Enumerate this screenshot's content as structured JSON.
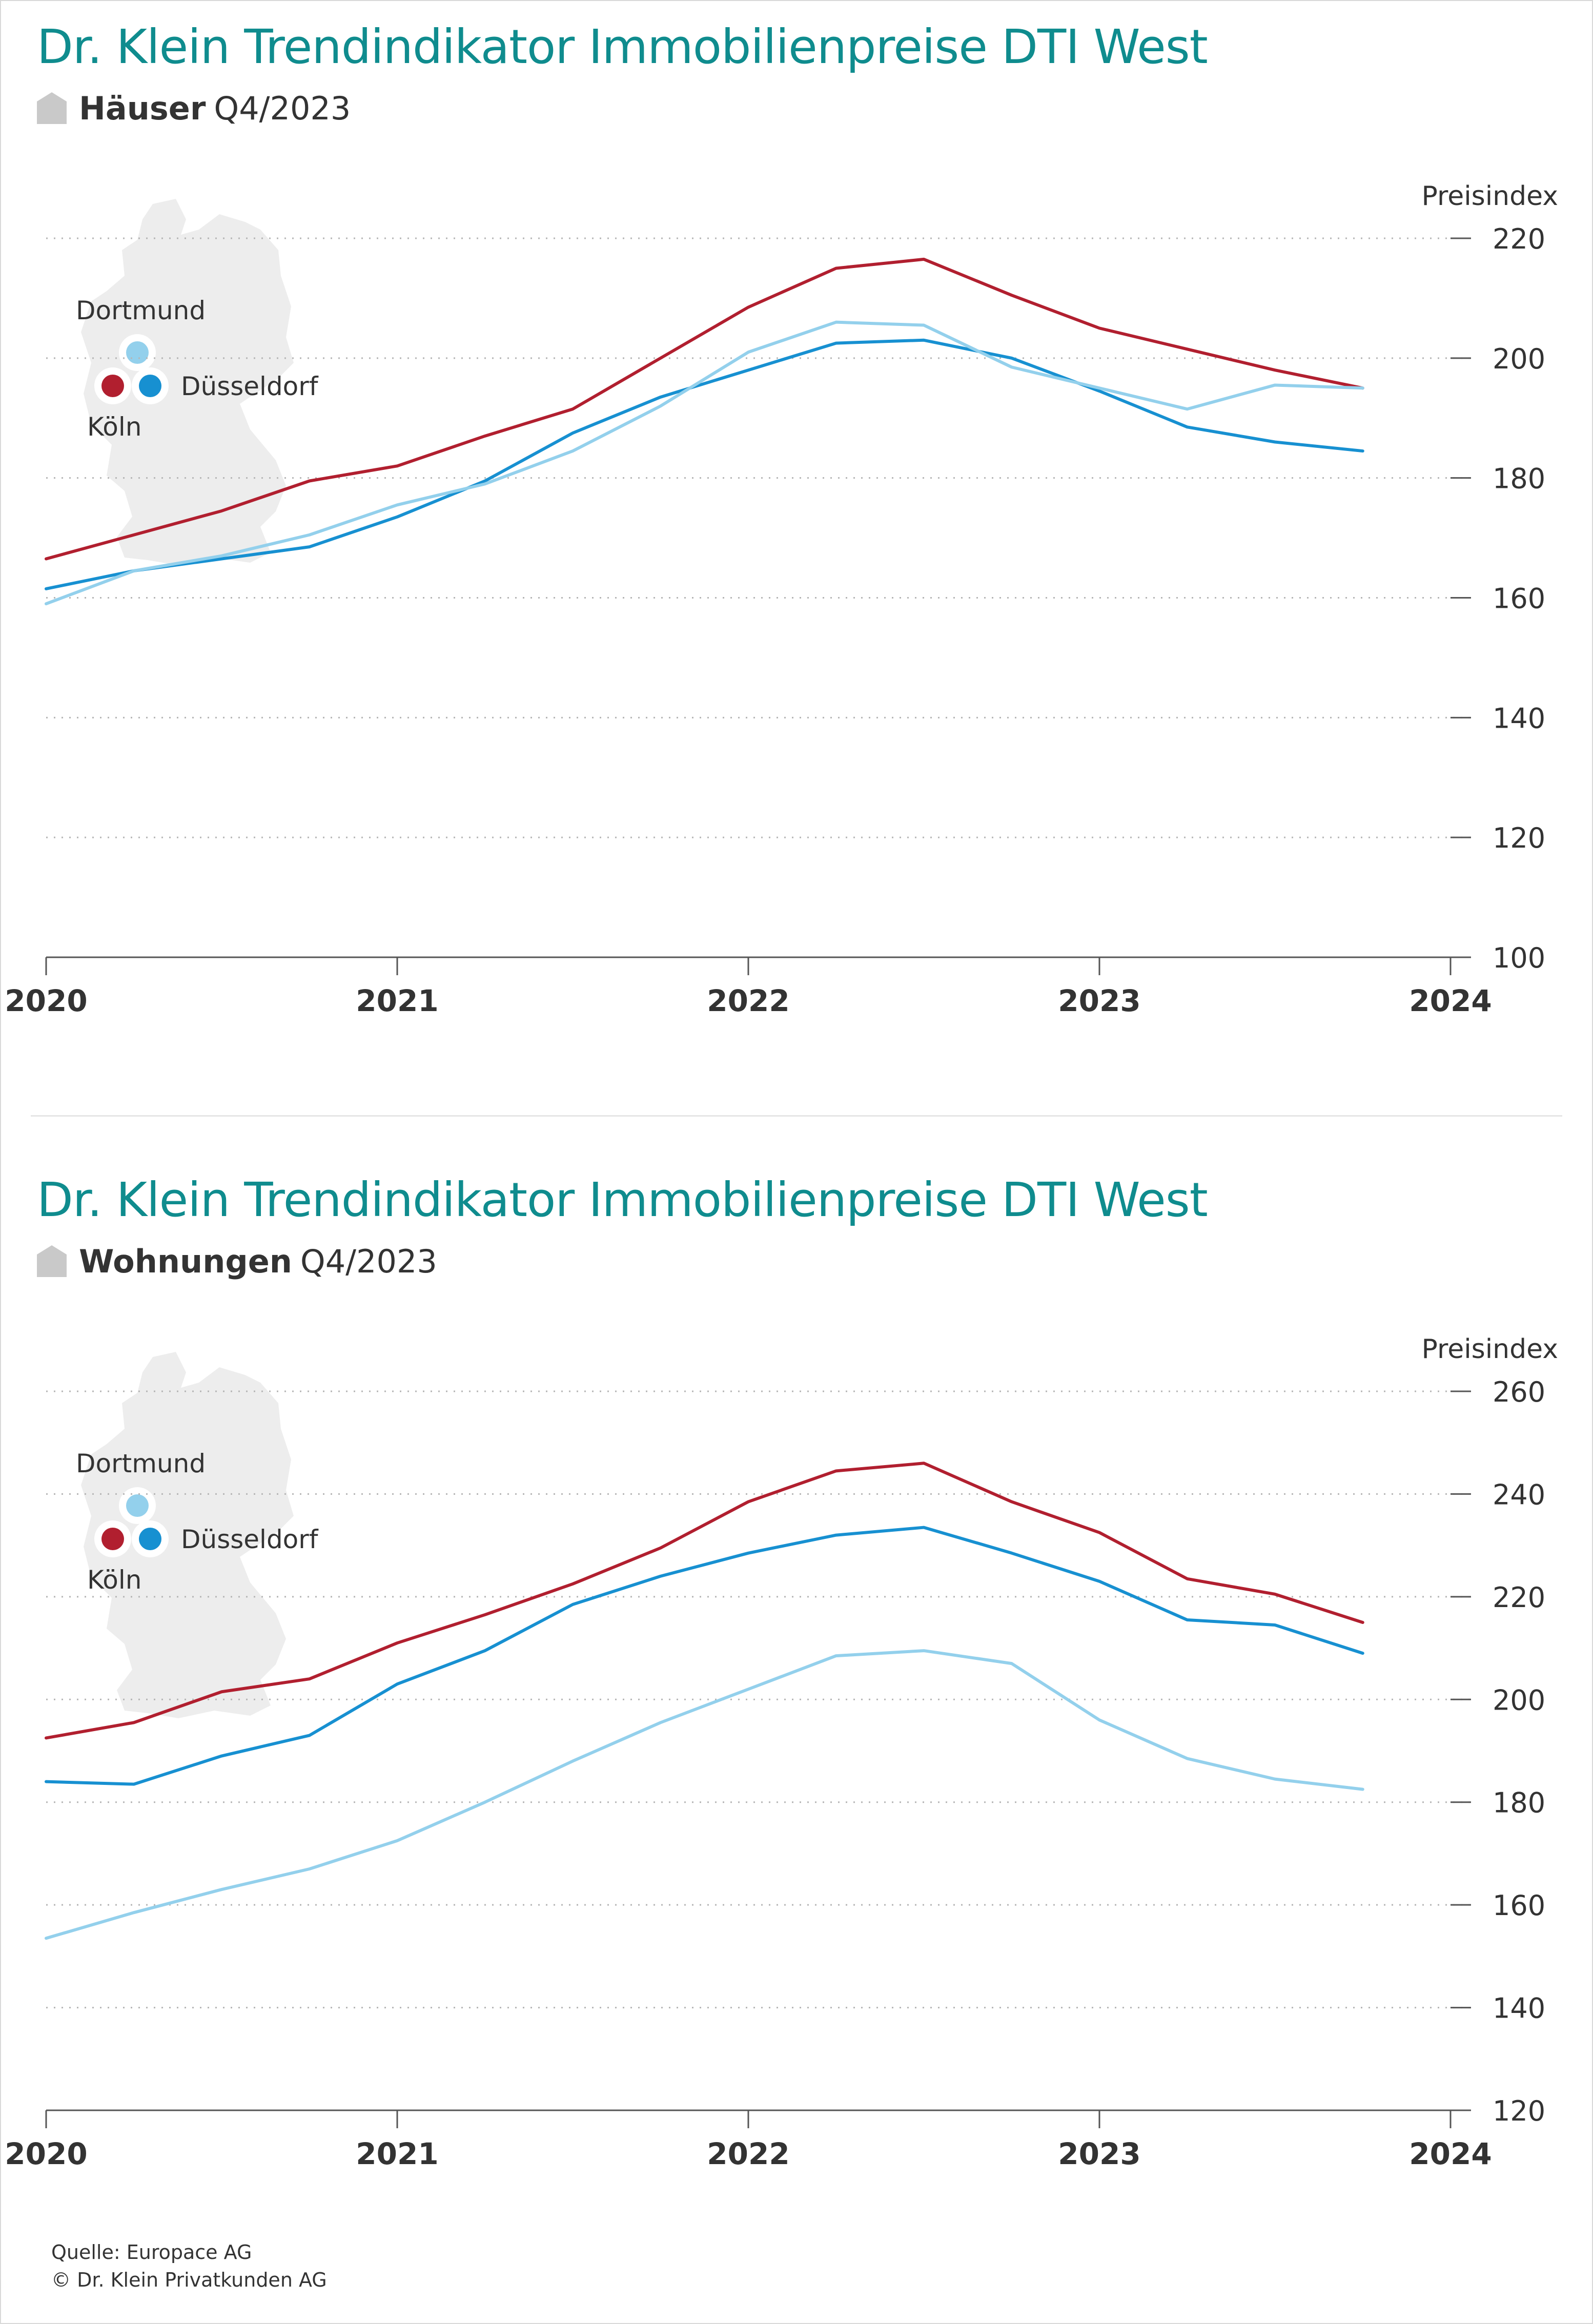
{
  "charts": [
    {
      "title": "Dr. Klein Trendindikator Immobilienpreise DTI West",
      "subject": "Häuser",
      "period": "Q4/2023",
      "map_labels": {
        "dortmund": "Dortmund",
        "duesseldorf": "Düsseldorf",
        "koeln": "Köln"
      }
    },
    {
      "title": "Dr. Klein Trendindikator Immobilienpreise DTI West",
      "subject": "Wohnungen",
      "period": "Q4/2023",
      "map_labels": {
        "dortmund": "Dortmund",
        "duesseldorf": "Düsseldorf",
        "koeln": "Köln"
      }
    }
  ],
  "footer": {
    "source": "Quelle: Europace AG",
    "copyright": "© Dr. Klein Privatkunden AG"
  },
  "chart_data": [
    {
      "type": "line",
      "ylabel": "Preisindex",
      "ylim": [
        100,
        220
      ],
      "yticks": [
        100,
        120,
        140,
        160,
        180,
        200,
        220
      ],
      "xlim": [
        2020,
        2024
      ],
      "xticks": [
        2020,
        2021,
        2022,
        2023,
        2024
      ],
      "x": [
        2020.0,
        2020.25,
        2020.5,
        2020.75,
        2021.0,
        2021.25,
        2021.5,
        2021.75,
        2022.0,
        2022.25,
        2022.5,
        2022.75,
        2023.0,
        2023.25,
        2023.5,
        2023.75
      ],
      "grid": true,
      "series": [
        {
          "id": "koeln",
          "color": "#b11f2f",
          "values": [
            166.5,
            170.5,
            174.5,
            179.5,
            182.0,
            187.0,
            191.5,
            200.0,
            208.5,
            215.0,
            216.5,
            210.5,
            205.0,
            201.5,
            198.0,
            195.0
          ]
        },
        {
          "id": "duesseldorf",
          "color": "#1790d1",
          "values": [
            161.5,
            164.5,
            166.5,
            168.5,
            173.5,
            179.5,
            187.5,
            193.5,
            198.0,
            202.5,
            203.0,
            200.0,
            194.5,
            188.5,
            186.0,
            184.5
          ]
        },
        {
          "id": "dortmund",
          "color": "#93d0ec",
          "values": [
            159.0,
            164.5,
            167.0,
            170.5,
            175.5,
            179.0,
            184.5,
            192.0,
            201.0,
            206.0,
            205.5,
            198.5,
            195.0,
            191.5,
            195.5,
            195.0
          ]
        }
      ]
    },
    {
      "type": "line",
      "ylabel": "Preisindex",
      "ylim": [
        120,
        260
      ],
      "yticks": [
        120,
        140,
        160,
        180,
        200,
        220,
        240,
        260
      ],
      "xlim": [
        2020,
        2024
      ],
      "xticks": [
        2020,
        2021,
        2022,
        2023,
        2024
      ],
      "x": [
        2020.0,
        2020.25,
        2020.5,
        2020.75,
        2021.0,
        2021.25,
        2021.5,
        2021.75,
        2022.0,
        2022.25,
        2022.5,
        2022.75,
        2023.0,
        2023.25,
        2023.5,
        2023.75
      ],
      "grid": true,
      "series": [
        {
          "id": "koeln",
          "color": "#b11f2f",
          "values": [
            192.5,
            195.5,
            201.5,
            204.0,
            211.0,
            216.5,
            222.5,
            229.5,
            238.5,
            244.5,
            246.0,
            238.5,
            232.5,
            223.5,
            220.5,
            215.0
          ]
        },
        {
          "id": "duesseldorf",
          "color": "#1790d1",
          "values": [
            184.0,
            183.5,
            189.0,
            193.0,
            203.0,
            209.5,
            218.5,
            224.0,
            228.5,
            232.0,
            233.5,
            228.5,
            223.0,
            215.5,
            214.5,
            209.0
          ]
        },
        {
          "id": "dortmund",
          "color": "#93d0ec",
          "values": [
            153.5,
            158.5,
            163.0,
            167.0,
            172.5,
            180.0,
            188.0,
            195.5,
            202.0,
            208.5,
            209.5,
            207.0,
            196.0,
            188.5,
            184.5,
            182.5
          ]
        }
      ]
    }
  ]
}
